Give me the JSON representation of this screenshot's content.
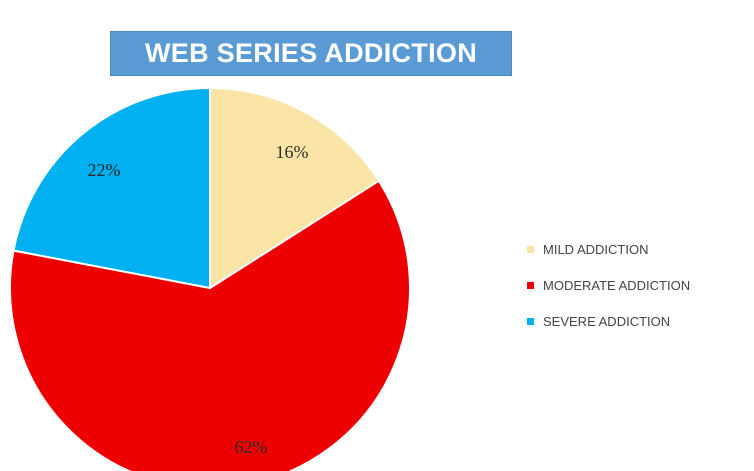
{
  "chart_data": {
    "type": "pie",
    "title": "WEB SERIES ADDICTION",
    "categories": [
      "MILD ADDICTION",
      "MODERATE ADDICTION",
      "SEVERE ADDICTION"
    ],
    "values": [
      16,
      62,
      22
    ],
    "labels": [
      "16%",
      "62%",
      "22%"
    ],
    "colors": [
      "#fbe5a6",
      "#ef0000",
      "#00b0f0"
    ],
    "legend": "right"
  }
}
